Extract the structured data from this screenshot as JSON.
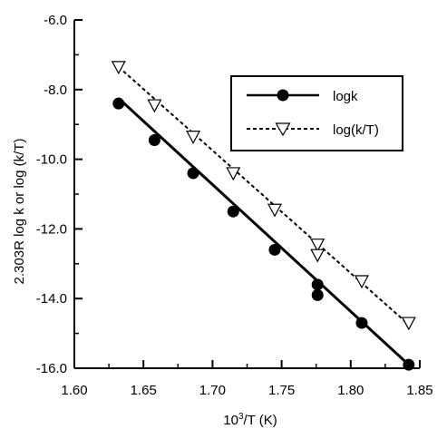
{
  "chart_data": {
    "type": "line",
    "xlabel": "10³/T (K)",
    "ylabel": "2.303R log k or log (k/T)",
    "xlim": [
      1.6,
      1.85
    ],
    "ylim": [
      -16.0,
      -6.0
    ],
    "x_ticks": [
      "1.60",
      "1.65",
      "1.70",
      "1.75",
      "1.80",
      "1.85"
    ],
    "y_ticks": [
      "-6.0",
      "-8.0",
      "-10.0",
      "-12.0",
      "-14.0",
      "-16.0"
    ],
    "x_tick_values": [
      1.6,
      1.65,
      1.7,
      1.75,
      1.8,
      1.85
    ],
    "y_tick_values": [
      -6.0,
      -8.0,
      -10.0,
      -12.0,
      -14.0,
      -16.0
    ],
    "legend_position": "top-right",
    "series": [
      {
        "name": "logk",
        "marker": "filled-circle",
        "line_style": "solid",
        "color": "#000000",
        "x": [
          1.632,
          1.658,
          1.686,
          1.715,
          1.745,
          1.776,
          1.776,
          1.808,
          1.842
        ],
        "y": [
          -8.4,
          -9.45,
          -10.4,
          -11.5,
          -12.6,
          -13.6,
          -13.9,
          -14.7,
          -15.9
        ],
        "fit": [
          [
            1.632,
            -8.25
          ],
          [
            1.842,
            -15.9
          ]
        ]
      },
      {
        "name": "log(k/T)",
        "marker": "open-triangle-down",
        "line_style": "dashed",
        "color": "#000000",
        "x": [
          1.632,
          1.658,
          1.686,
          1.715,
          1.745,
          1.776,
          1.776,
          1.808,
          1.842
        ],
        "y": [
          -7.35,
          -8.45,
          -9.35,
          -10.4,
          -11.45,
          -12.45,
          -12.75,
          -13.5,
          -14.7
        ],
        "fit": [
          [
            1.632,
            -7.35
          ],
          [
            1.842,
            -14.75
          ]
        ]
      }
    ]
  }
}
